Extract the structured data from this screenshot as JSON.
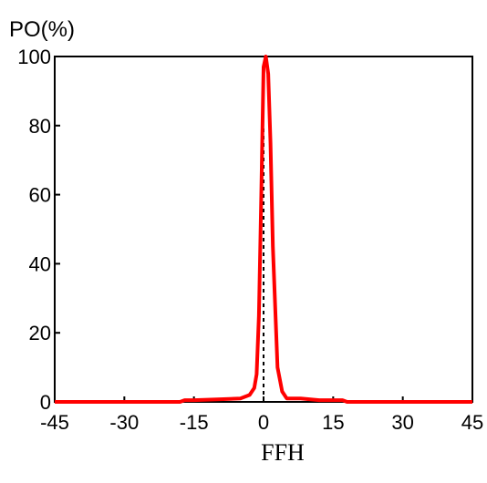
{
  "chart_data": {
    "type": "line",
    "title": "",
    "xlabel": "FFH",
    "ylabel": "PO(%)",
    "xlim": [
      -45,
      45
    ],
    "ylim": [
      0,
      100
    ],
    "xticks": [
      -45,
      -30,
      -15,
      0,
      15,
      30,
      45
    ],
    "yticks": [
      0,
      20,
      40,
      60,
      80,
      100
    ],
    "xtick_labels": [
      "-45",
      "-30",
      "-15",
      "0",
      "15",
      "30",
      "45"
    ],
    "ytick_labels": [
      "0",
      "20",
      "40",
      "60",
      "80",
      "100"
    ],
    "grid": false,
    "reference_line": {
      "x": 0,
      "style": "dashed",
      "color": "#000000"
    },
    "series": [
      {
        "color": "#ff0000",
        "x": [
          -45,
          -30,
          -18,
          -17,
          -15,
          -10,
          -5,
          -3,
          -2,
          -1.5,
          -1,
          -0.5,
          0,
          0.5,
          1,
          1.5,
          2,
          3,
          4,
          5,
          8,
          12,
          17,
          18,
          30,
          45
        ],
        "y": [
          0,
          0,
          0,
          0.5,
          0.5,
          0.7,
          1,
          2,
          4,
          8,
          25,
          60,
          97,
          100,
          95,
          75,
          45,
          10,
          3,
          1,
          1,
          0.5,
          0.5,
          0,
          0,
          0
        ]
      }
    ]
  }
}
